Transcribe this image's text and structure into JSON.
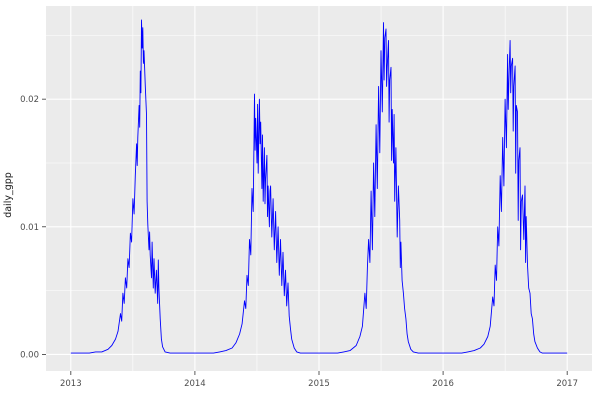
{
  "chart_data": {
    "type": "line",
    "title": "",
    "xlabel": "",
    "ylabel": "daily_gpp",
    "series_name": "daily_gpp",
    "theme": "ggplot2-grey",
    "legend": "none",
    "grid": "on",
    "line_color": "#0000FF",
    "panel_background": "#EBEBEB",
    "figure_background": "#FFFFFF",
    "gridline_color": "#FFFFFF",
    "tick_label_color": "#4D4D4D",
    "axis_title_color": "#1A1A1A",
    "tick_mark_color": "#333333",
    "xlim": [
      2012.8,
      2017.2
    ],
    "ylim": [
      -0.0013,
      0.0273
    ],
    "x_ticks": {
      "values": [
        2013,
        2014,
        2015,
        2016,
        2017
      ],
      "labels": [
        "2013",
        "2014",
        "2015",
        "2016",
        "2017"
      ]
    },
    "y_ticks": {
      "values": [
        0,
        0.01,
        0.02
      ],
      "labels": [
        "0.00",
        "0.01",
        "0.02"
      ]
    },
    "x_minor_ticks": [
      2013.5,
      2014.5,
      2015.5,
      2016.5
    ],
    "y_minor_ticks": [
      0.005,
      0.015,
      0.025
    ],
    "points": [
      [
        2013.0,
        0.0001
      ],
      [
        2013.05,
        0.0001
      ],
      [
        2013.1,
        0.0001
      ],
      [
        2013.15,
        0.0001
      ],
      [
        2013.2,
        0.0002
      ],
      [
        2013.25,
        0.0002
      ],
      [
        2013.3,
        0.0004
      ],
      [
        2013.33,
        0.0007
      ],
      [
        2013.36,
        0.0012
      ],
      [
        2013.38,
        0.0018
      ],
      [
        2013.4,
        0.0032
      ],
      [
        2013.41,
        0.0026
      ],
      [
        2013.42,
        0.0048
      ],
      [
        2013.43,
        0.004
      ],
      [
        2013.44,
        0.006
      ],
      [
        2013.45,
        0.0052
      ],
      [
        2013.46,
        0.0075
      ],
      [
        2013.47,
        0.0068
      ],
      [
        2013.48,
        0.0095
      ],
      [
        2013.49,
        0.0088
      ],
      [
        2013.5,
        0.0122
      ],
      [
        2013.51,
        0.011
      ],
      [
        2013.52,
        0.014
      ],
      [
        2013.53,
        0.0165
      ],
      [
        2013.535,
        0.0148
      ],
      [
        2013.54,
        0.017
      ],
      [
        2013.55,
        0.0195
      ],
      [
        2013.555,
        0.0178
      ],
      [
        2013.56,
        0.0222
      ],
      [
        2013.565,
        0.0205
      ],
      [
        2013.57,
        0.0262
      ],
      [
        2013.575,
        0.024
      ],
      [
        2013.58,
        0.0256
      ],
      [
        2013.585,
        0.0228
      ],
      [
        2013.59,
        0.0238
      ],
      [
        2013.6,
        0.021
      ],
      [
        2013.61,
        0.0188
      ],
      [
        2013.615,
        0.012
      ],
      [
        2013.62,
        0.0102
      ],
      [
        2013.63,
        0.0082
      ],
      [
        2013.635,
        0.0096
      ],
      [
        2013.64,
        0.0078
      ],
      [
        2013.65,
        0.006
      ],
      [
        2013.655,
        0.0088
      ],
      [
        2013.66,
        0.007
      ],
      [
        2013.665,
        0.0052
      ],
      [
        2013.67,
        0.0075
      ],
      [
        2013.68,
        0.0048
      ],
      [
        2013.69,
        0.0066
      ],
      [
        2013.7,
        0.004
      ],
      [
        2013.705,
        0.0074
      ],
      [
        2013.71,
        0.0052
      ],
      [
        2013.72,
        0.0028
      ],
      [
        2013.73,
        0.0012
      ],
      [
        2013.74,
        0.0006
      ],
      [
        2013.76,
        0.0002
      ],
      [
        2013.8,
        0.0001
      ],
      [
        2013.85,
        0.0001
      ],
      [
        2013.9,
        0.0001
      ],
      [
        2013.95,
        0.0001
      ],
      [
        2014.0,
        0.0001
      ],
      [
        2014.05,
        0.0001
      ],
      [
        2014.1,
        0.0001
      ],
      [
        2014.15,
        0.0001
      ],
      [
        2014.2,
        0.0002
      ],
      [
        2014.25,
        0.0003
      ],
      [
        2014.3,
        0.0005
      ],
      [
        2014.33,
        0.0009
      ],
      [
        2014.36,
        0.0016
      ],
      [
        2014.38,
        0.0024
      ],
      [
        2014.4,
        0.0042
      ],
      [
        2014.41,
        0.0036
      ],
      [
        2014.42,
        0.0062
      ],
      [
        2014.43,
        0.0054
      ],
      [
        2014.44,
        0.009
      ],
      [
        2014.45,
        0.0078
      ],
      [
        2014.46,
        0.013
      ],
      [
        2014.47,
        0.0112
      ],
      [
        2014.48,
        0.0204
      ],
      [
        2014.485,
        0.016
      ],
      [
        2014.49,
        0.0185
      ],
      [
        2014.5,
        0.015
      ],
      [
        2014.505,
        0.0196
      ],
      [
        2014.51,
        0.0142
      ],
      [
        2014.52,
        0.02
      ],
      [
        2014.525,
        0.0165
      ],
      [
        2014.53,
        0.0182
      ],
      [
        2014.54,
        0.013
      ],
      [
        2014.545,
        0.0172
      ],
      [
        2014.55,
        0.012
      ],
      [
        2014.56,
        0.0162
      ],
      [
        2014.565,
        0.0118
      ],
      [
        2014.57,
        0.0138
      ],
      [
        2014.58,
        0.0156
      ],
      [
        2014.585,
        0.0108
      ],
      [
        2014.59,
        0.0132
      ],
      [
        2014.6,
        0.01
      ],
      [
        2014.605,
        0.0128
      ],
      [
        2014.61,
        0.0132
      ],
      [
        2014.62,
        0.0092
      ],
      [
        2014.63,
        0.0122
      ],
      [
        2014.64,
        0.0082
      ],
      [
        2014.65,
        0.0112
      ],
      [
        2014.66,
        0.0072
      ],
      [
        2014.67,
        0.01
      ],
      [
        2014.68,
        0.0062
      ],
      [
        2014.69,
        0.009
      ],
      [
        2014.7,
        0.0054
      ],
      [
        2014.71,
        0.008
      ],
      [
        2014.72,
        0.0046
      ],
      [
        2014.73,
        0.0066
      ],
      [
        2014.74,
        0.0038
      ],
      [
        2014.75,
        0.0056
      ],
      [
        2014.76,
        0.003
      ],
      [
        2014.77,
        0.002
      ],
      [
        2014.78,
        0.0012
      ],
      [
        2014.8,
        0.0005
      ],
      [
        2014.82,
        0.0002
      ],
      [
        2014.85,
        0.0001
      ],
      [
        2014.9,
        0.0001
      ],
      [
        2014.95,
        0.0001
      ],
      [
        2015.0,
        0.0001
      ],
      [
        2015.05,
        0.0001
      ],
      [
        2015.1,
        0.0001
      ],
      [
        2015.15,
        0.0001
      ],
      [
        2015.2,
        0.0002
      ],
      [
        2015.25,
        0.0003
      ],
      [
        2015.3,
        0.0007
      ],
      [
        2015.33,
        0.0014
      ],
      [
        2015.35,
        0.0022
      ],
      [
        2015.37,
        0.0048
      ],
      [
        2015.38,
        0.0036
      ],
      [
        2015.39,
        0.0068
      ],
      [
        2015.4,
        0.009
      ],
      [
        2015.41,
        0.0072
      ],
      [
        2015.42,
        0.0128
      ],
      [
        2015.43,
        0.0082
      ],
      [
        2015.44,
        0.015
      ],
      [
        2015.45,
        0.0108
      ],
      [
        2015.46,
        0.018
      ],
      [
        2015.47,
        0.013
      ],
      [
        2015.48,
        0.021
      ],
      [
        2015.49,
        0.0158
      ],
      [
        2015.5,
        0.0238
      ],
      [
        2015.51,
        0.019
      ],
      [
        2015.52,
        0.026
      ],
      [
        2015.525,
        0.0215
      ],
      [
        2015.53,
        0.0248
      ],
      [
        2015.54,
        0.0255
      ],
      [
        2015.545,
        0.021
      ],
      [
        2015.55,
        0.0225
      ],
      [
        2015.56,
        0.0246
      ],
      [
        2015.565,
        0.0182
      ],
      [
        2015.57,
        0.0215
      ],
      [
        2015.58,
        0.0225
      ],
      [
        2015.585,
        0.0152
      ],
      [
        2015.59,
        0.0192
      ],
      [
        2015.6,
        0.015
      ],
      [
        2015.605,
        0.0188
      ],
      [
        2015.61,
        0.012
      ],
      [
        2015.62,
        0.0162
      ],
      [
        2015.63,
        0.0092
      ],
      [
        2015.64,
        0.0132
      ],
      [
        2015.65,
        0.0105
      ],
      [
        2015.655,
        0.0068
      ],
      [
        2015.66,
        0.0088
      ],
      [
        2015.67,
        0.0058
      ],
      [
        2015.68,
        0.0048
      ],
      [
        2015.69,
        0.0036
      ],
      [
        2015.7,
        0.0028
      ],
      [
        2015.71,
        0.0016
      ],
      [
        2015.72,
        0.001
      ],
      [
        2015.74,
        0.0004
      ],
      [
        2015.76,
        0.0002
      ],
      [
        2015.8,
        0.0001
      ],
      [
        2015.85,
        0.0001
      ],
      [
        2015.9,
        0.0001
      ],
      [
        2015.95,
        0.0001
      ],
      [
        2016.0,
        0.0001
      ],
      [
        2016.05,
        0.0001
      ],
      [
        2016.1,
        0.0001
      ],
      [
        2016.15,
        0.0001
      ],
      [
        2016.2,
        0.0002
      ],
      [
        2016.25,
        0.0003
      ],
      [
        2016.3,
        0.0005
      ],
      [
        2016.33,
        0.0008
      ],
      [
        2016.36,
        0.0014
      ],
      [
        2016.38,
        0.0022
      ],
      [
        2016.4,
        0.0045
      ],
      [
        2016.41,
        0.0038
      ],
      [
        2016.42,
        0.007
      ],
      [
        2016.43,
        0.0058
      ],
      [
        2016.44,
        0.01
      ],
      [
        2016.45,
        0.0085
      ],
      [
        2016.46,
        0.014
      ],
      [
        2016.47,
        0.0112
      ],
      [
        2016.48,
        0.017
      ],
      [
        2016.49,
        0.0132
      ],
      [
        2016.5,
        0.02
      ],
      [
        2016.51,
        0.0162
      ],
      [
        2016.52,
        0.0235
      ],
      [
        2016.525,
        0.0192
      ],
      [
        2016.53,
        0.0215
      ],
      [
        2016.54,
        0.0246
      ],
      [
        2016.545,
        0.0205
      ],
      [
        2016.55,
        0.0226
      ],
      [
        2016.56,
        0.0232
      ],
      [
        2016.565,
        0.0175
      ],
      [
        2016.57,
        0.021
      ],
      [
        2016.58,
        0.0226
      ],
      [
        2016.585,
        0.0142
      ],
      [
        2016.59,
        0.0195
      ],
      [
        2016.6,
        0.019
      ],
      [
        2016.605,
        0.0105
      ],
      [
        2016.61,
        0.0152
      ],
      [
        2016.62,
        0.0162
      ],
      [
        2016.625,
        0.0082
      ],
      [
        2016.63,
        0.012
      ],
      [
        2016.64,
        0.0125
      ],
      [
        2016.65,
        0.009
      ],
      [
        2016.66,
        0.0132
      ],
      [
        2016.665,
        0.0072
      ],
      [
        2016.67,
        0.0108
      ],
      [
        2016.68,
        0.007
      ],
      [
        2016.69,
        0.0052
      ],
      [
        2016.7,
        0.0048
      ],
      [
        2016.71,
        0.0032
      ],
      [
        2016.72,
        0.0028
      ],
      [
        2016.73,
        0.0016
      ],
      [
        2016.74,
        0.001
      ],
      [
        2016.76,
        0.0005
      ],
      [
        2016.78,
        0.0002
      ],
      [
        2016.8,
        0.0001
      ],
      [
        2016.85,
        0.0001
      ],
      [
        2016.9,
        0.0001
      ],
      [
        2016.95,
        0.0001
      ],
      [
        2017.0,
        0.0001
      ]
    ]
  }
}
